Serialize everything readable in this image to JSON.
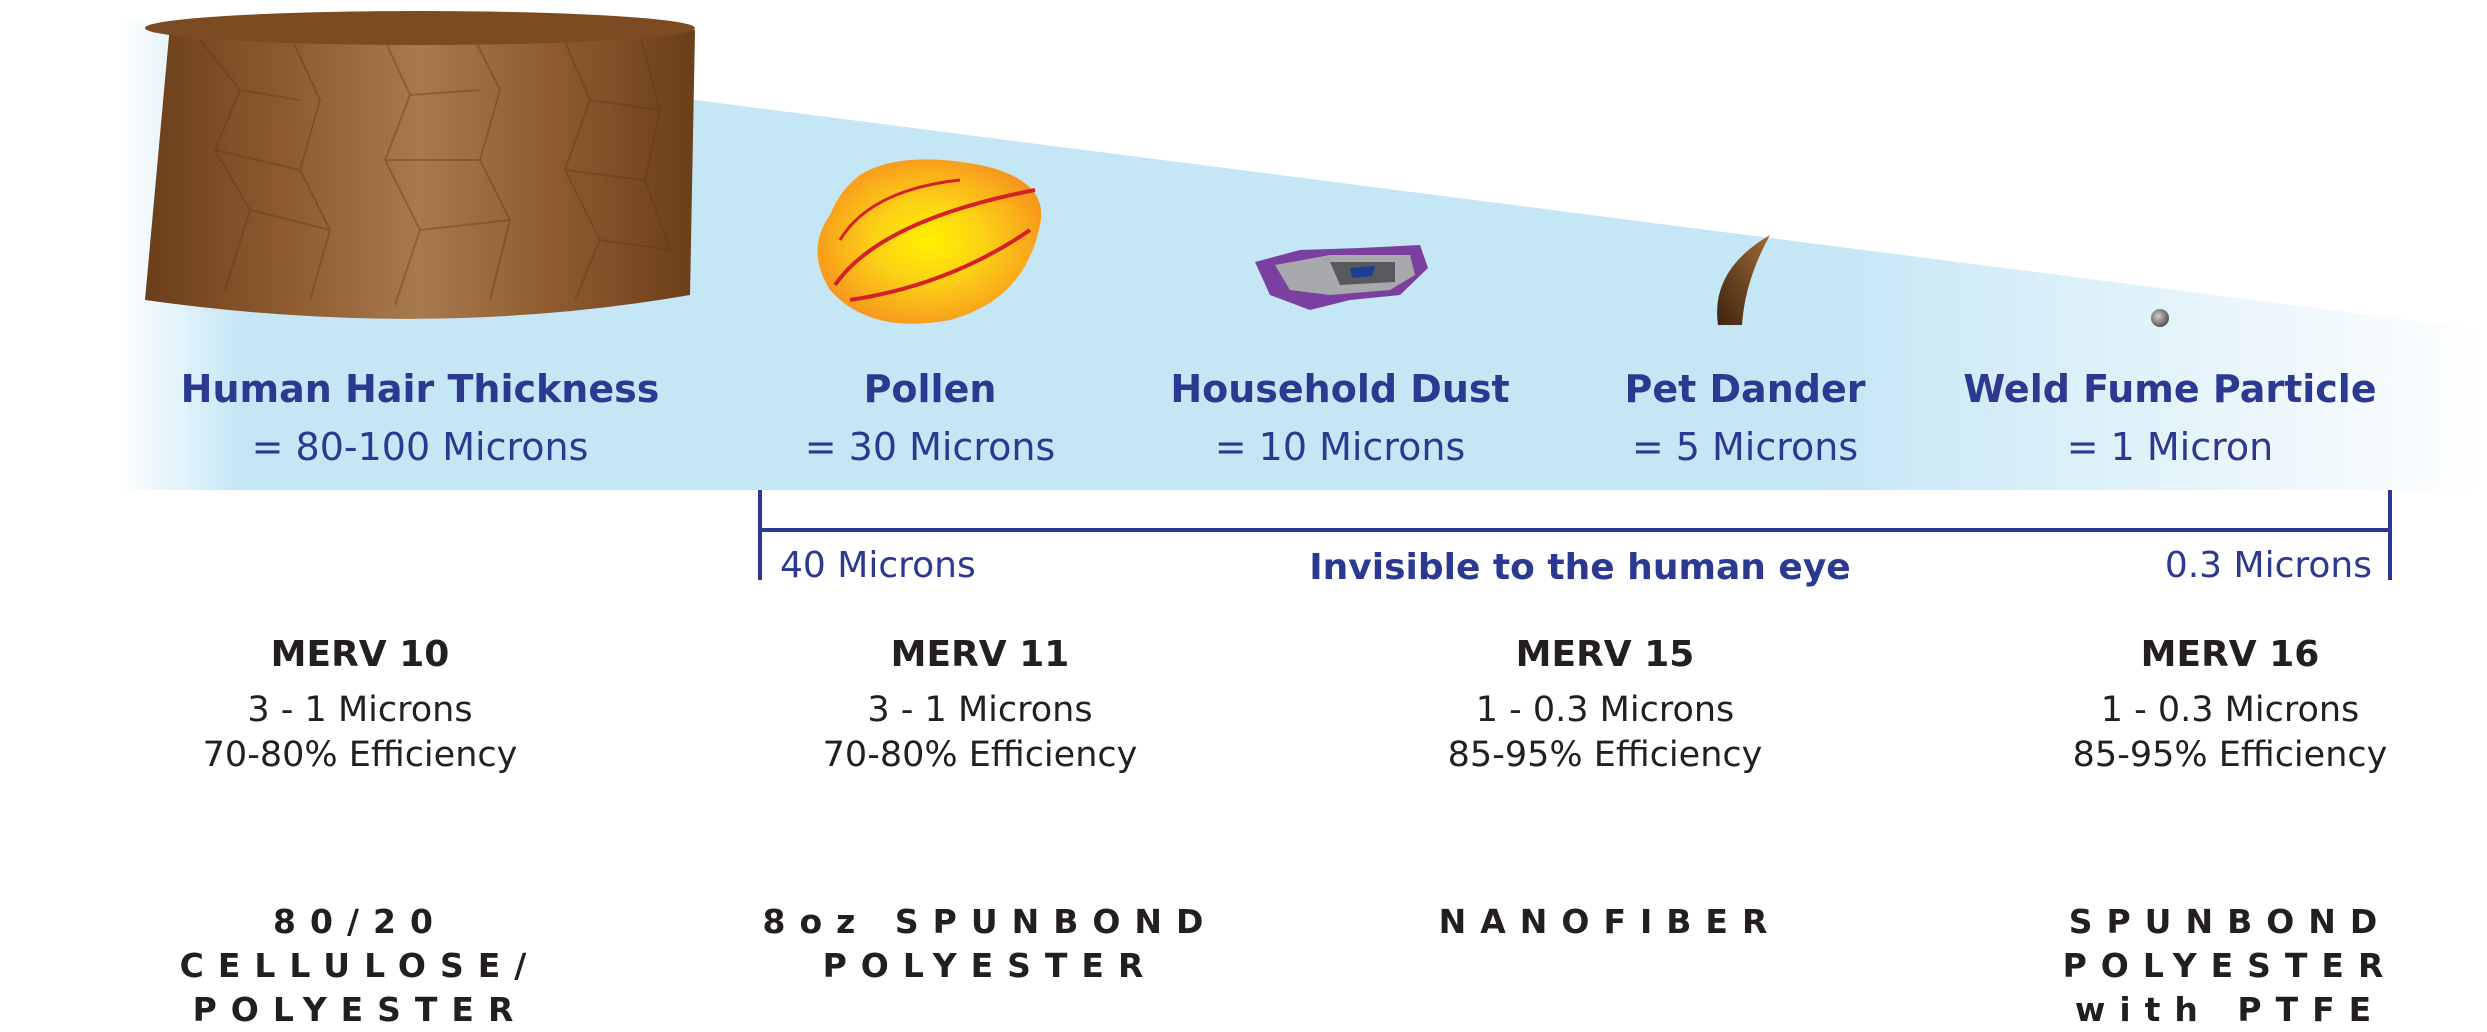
{
  "particles": [
    {
      "name": "Human Hair Thickness",
      "size": "= 80-100 Microns",
      "icon": "hair-strand-icon"
    },
    {
      "name": "Pollen",
      "size": "= 30 Microns",
      "icon": "pollen-icon"
    },
    {
      "name": "Household Dust",
      "size": "= 10 Microns",
      "icon": "dust-icon"
    },
    {
      "name": "Pet Dander",
      "size": "= 5 Microns",
      "icon": "dander-icon"
    },
    {
      "name": "Weld Fume Particle",
      "size": "= 1 Micron",
      "icon": "weld-fume-icon"
    }
  ],
  "scale": {
    "left_label": "40 Microns",
    "center_label": "Invisible to the human eye",
    "right_label": "0.3 Microns"
  },
  "filters": [
    {
      "merv": "MERV 10",
      "range": "3 - 1 Microns",
      "efficiency": "70-80% Efficiency",
      "media_lines": [
        "80/20",
        "CELLULOSE/",
        "POLYESTER"
      ]
    },
    {
      "merv": "MERV 11",
      "range": "3 - 1 Microns",
      "efficiency": "70-80% Efficiency",
      "media_lines": [
        "8oz SPUNBOND",
        "POLYESTER"
      ]
    },
    {
      "merv": "MERV 15",
      "range": "1 - 0.3 Microns",
      "efficiency": "85-95% Efficiency",
      "media_lines": [
        "NANOFIBER"
      ]
    },
    {
      "merv": "MERV 16",
      "range": "1 - 0.3 Microns",
      "efficiency": "85-95% Efficiency",
      "media_lines": [
        "SPUNBOND",
        "POLYESTER",
        "with PTFE"
      ]
    }
  ],
  "colors": {
    "label_blue": "#2b3990",
    "band_blue": "#c5e6f5",
    "text_dark": "#231f20",
    "hair_brown": "#9b6a3d"
  }
}
